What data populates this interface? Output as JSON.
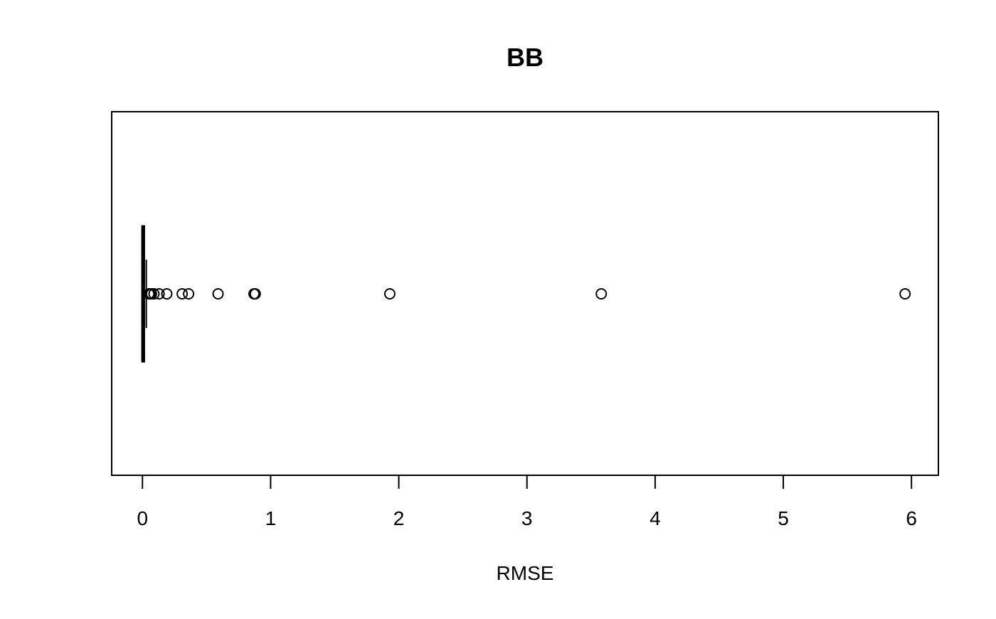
{
  "chart_data": {
    "type": "boxplot",
    "orientation": "horizontal",
    "title": "BB",
    "xlabel": "RMSE",
    "ylabel": "",
    "xlim": [
      -0.24,
      6.21
    ],
    "x_ticks": [
      0,
      1,
      2,
      3,
      4,
      5,
      6
    ],
    "x_tick_labels": [
      "0",
      "1",
      "2",
      "3",
      "4",
      "5",
      "6"
    ],
    "box": {
      "q1": 0.0,
      "median": 0.005,
      "q3": 0.012,
      "whisker_low": 0.0,
      "whisker_high": 0.03
    },
    "outliers": [
      0.05,
      0.06,
      0.07,
      0.09,
      0.13,
      0.19,
      0.31,
      0.36,
      0.59,
      0.87,
      0.88,
      1.93,
      3.58,
      5.95
    ],
    "grid": false,
    "frame": true,
    "colors": {
      "foreground": "#000000",
      "background": "#ffffff"
    }
  }
}
